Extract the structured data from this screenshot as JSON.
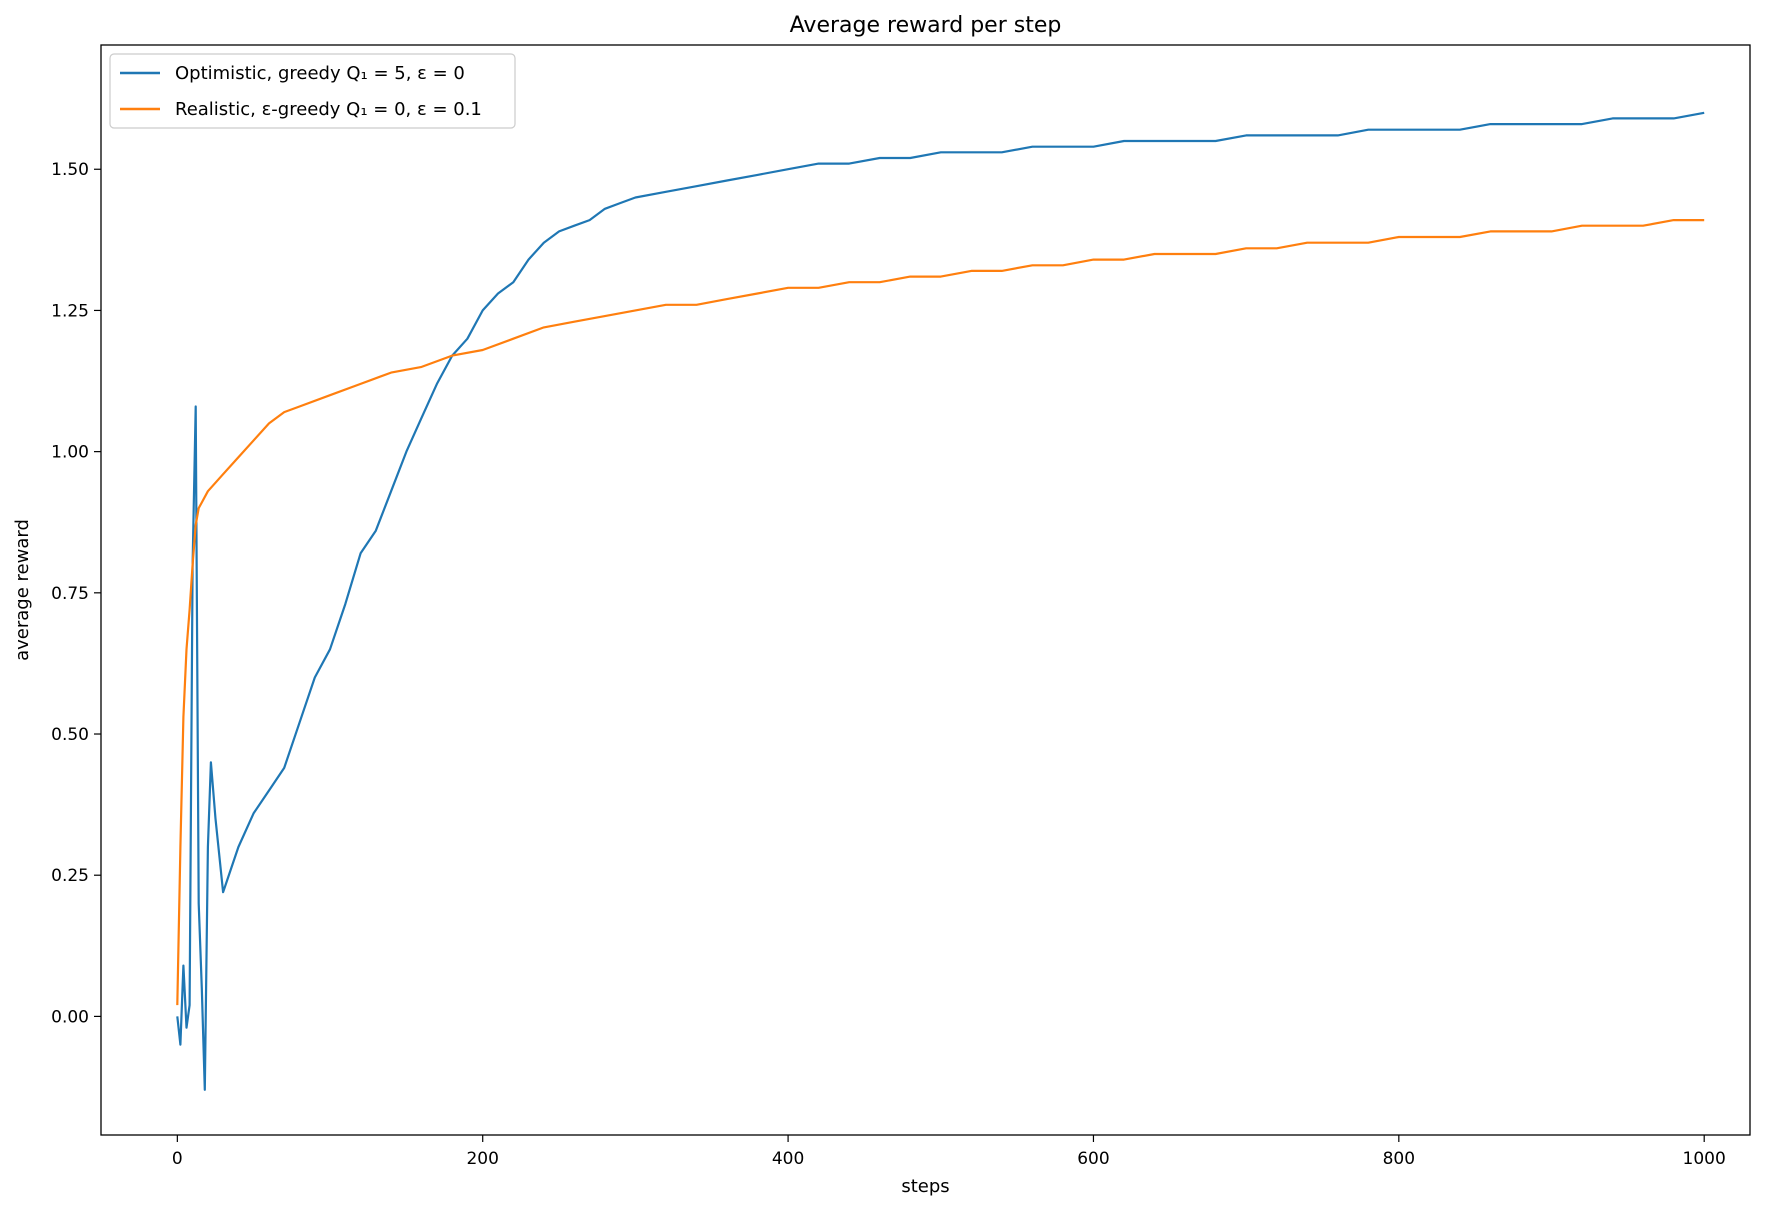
{
  "chart_data": {
    "type": "line",
    "title": "Average reward per step",
    "xlabel": "steps",
    "ylabel": "average reward",
    "xlim": [
      -50,
      1030
    ],
    "ylim": [
      -0.21,
      1.72
    ],
    "xticks": [
      0,
      200,
      400,
      600,
      800,
      1000
    ],
    "xtick_labels": [
      "0",
      "200",
      "400",
      "600",
      "800",
      "1000"
    ],
    "yticks": [
      0.0,
      0.25,
      0.5,
      0.75,
      1.0,
      1.25,
      1.5
    ],
    "ytick_labels": [
      "0.00",
      "0.25",
      "0.50",
      "0.75",
      "1.00",
      "1.25",
      "1.50"
    ],
    "grid": false,
    "legend": "top-left",
    "series": [
      {
        "name": "Optimistic, greedy Q₁ = 5, ε = 0",
        "color": "#1f77b4",
        "x": [
          0,
          2,
          4,
          6,
          8,
          10,
          12,
          14,
          16,
          18,
          20,
          22,
          25,
          30,
          40,
          50,
          60,
          70,
          80,
          90,
          100,
          110,
          120,
          130,
          140,
          150,
          160,
          170,
          180,
          190,
          200,
          210,
          220,
          230,
          240,
          250,
          260,
          270,
          280,
          290,
          300,
          320,
          340,
          360,
          380,
          400,
          420,
          440,
          460,
          480,
          500,
          520,
          540,
          560,
          580,
          600,
          620,
          640,
          660,
          680,
          700,
          720,
          740,
          760,
          780,
          800,
          820,
          840,
          860,
          880,
          900,
          920,
          940,
          960,
          980,
          1000
        ],
        "y": [
          0.0,
          -0.05,
          0.09,
          -0.02,
          0.02,
          0.8,
          1.08,
          0.2,
          0.05,
          -0.13,
          0.3,
          0.45,
          0.35,
          0.22,
          0.3,
          0.36,
          0.4,
          0.44,
          0.52,
          0.6,
          0.65,
          0.73,
          0.82,
          0.86,
          0.93,
          1.0,
          1.06,
          1.12,
          1.17,
          1.2,
          1.25,
          1.28,
          1.3,
          1.34,
          1.37,
          1.39,
          1.4,
          1.41,
          1.43,
          1.44,
          1.45,
          1.46,
          1.47,
          1.48,
          1.49,
          1.5,
          1.51,
          1.51,
          1.52,
          1.52,
          1.53,
          1.53,
          1.53,
          1.54,
          1.54,
          1.54,
          1.55,
          1.55,
          1.55,
          1.55,
          1.56,
          1.56,
          1.56,
          1.56,
          1.57,
          1.57,
          1.57,
          1.57,
          1.58,
          1.58,
          1.58,
          1.58,
          1.59,
          1.59,
          1.59,
          1.6
        ]
      },
      {
        "name": "Realistic, ε-greedy Q₁ = 0, ε = 0.1",
        "color": "#ff7f0e",
        "x": [
          0,
          2,
          4,
          6,
          8,
          10,
          12,
          14,
          16,
          20,
          30,
          40,
          50,
          60,
          70,
          80,
          100,
          120,
          140,
          160,
          180,
          200,
          220,
          240,
          260,
          280,
          300,
          320,
          340,
          360,
          380,
          400,
          420,
          440,
          460,
          480,
          500,
          520,
          540,
          560,
          580,
          600,
          620,
          640,
          660,
          680,
          700,
          720,
          740,
          760,
          780,
          800,
          820,
          840,
          860,
          880,
          900,
          920,
          940,
          960,
          980,
          1000
        ],
        "y": [
          0.02,
          0.3,
          0.53,
          0.65,
          0.72,
          0.8,
          0.87,
          0.9,
          0.91,
          0.93,
          0.96,
          0.99,
          1.02,
          1.05,
          1.07,
          1.08,
          1.1,
          1.12,
          1.14,
          1.15,
          1.17,
          1.18,
          1.2,
          1.22,
          1.23,
          1.24,
          1.25,
          1.26,
          1.26,
          1.27,
          1.28,
          1.29,
          1.29,
          1.3,
          1.3,
          1.31,
          1.31,
          1.32,
          1.32,
          1.33,
          1.33,
          1.34,
          1.34,
          1.35,
          1.35,
          1.35,
          1.36,
          1.36,
          1.37,
          1.37,
          1.37,
          1.38,
          1.38,
          1.38,
          1.39,
          1.39,
          1.39,
          1.4,
          1.4,
          1.4,
          1.41,
          1.41
        ]
      }
    ]
  }
}
